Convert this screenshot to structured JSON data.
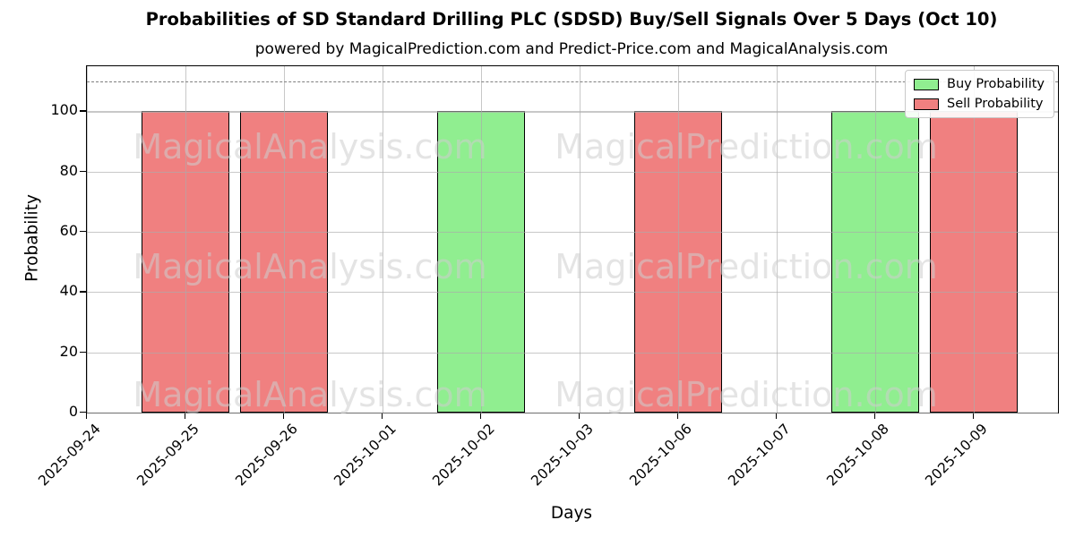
{
  "title": "Probabilities of SD Standard Drilling PLC (SDSD) Buy/Sell Signals Over 5 Days (Oct 10)",
  "subtitle": "powered by MagicalPrediction.com and Predict-Price.com and MagicalAnalysis.com",
  "watermarks": {
    "left": "MagicalAnalysis.com",
    "right": "MagicalPrediction.com"
  },
  "legend": [
    {
      "label": "Buy Probability",
      "color": "#90ee90"
    },
    {
      "label": "Sell Probability",
      "color": "#f08080"
    }
  ],
  "colors": {
    "buy": "#90ee90",
    "sell": "#f08080",
    "bar_edge": "#000000",
    "grid": "#aaaaaa",
    "dashed_line": "#7f7f7f",
    "watermark": "#cdcdcd"
  },
  "chart_data": {
    "type": "bar",
    "title": "Probabilities of SD Standard Drilling PLC (SDSD) Buy/Sell Signals Over 5 Days (Oct 10)",
    "xlabel": "Days",
    "ylabel": "Probability",
    "ylim": [
      0,
      115
    ],
    "yticks": [
      0,
      20,
      40,
      60,
      80,
      100
    ],
    "dashed_line_y": 110,
    "grid": true,
    "legend_position": "upper right",
    "categories": [
      "2025-09-24",
      "2025-09-25",
      "2025-09-26",
      "2025-10-01",
      "2025-10-02",
      "2025-10-03",
      "2025-10-06",
      "2025-10-07",
      "2025-10-08",
      "2025-10-09"
    ],
    "series": [
      {
        "name": "Buy Probability",
        "color": "#90ee90",
        "values": [
          0,
          0,
          0,
          0,
          100,
          0,
          0,
          0,
          100,
          0
        ]
      },
      {
        "name": "Sell Probability",
        "color": "#f08080",
        "values": [
          0,
          100,
          100,
          0,
          0,
          0,
          100,
          0,
          0,
          100
        ]
      }
    ]
  }
}
